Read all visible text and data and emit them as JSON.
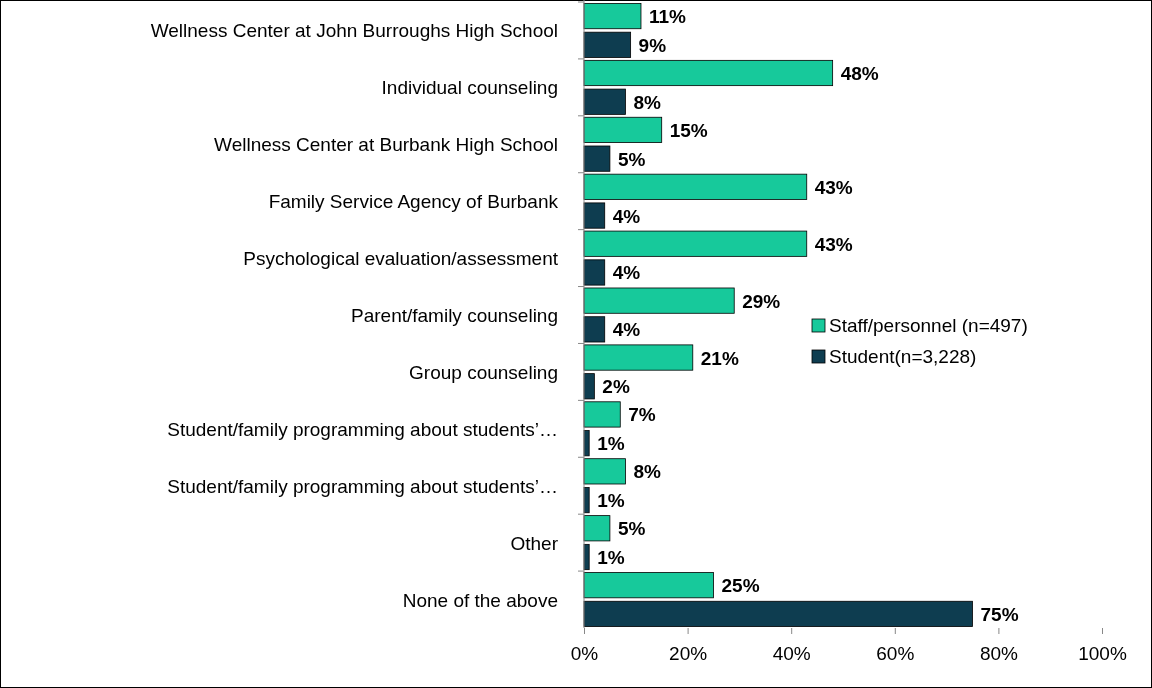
{
  "chart_data": {
    "type": "bar",
    "orientation": "horizontal",
    "categories": [
      "Wellness Center at John Burroughs High School",
      "Individual counseling",
      "Wellness Center at Burbank High School",
      "Family Service Agency of Burbank",
      "Psychological evaluation/assessment",
      "Parent/family counseling",
      "Group counseling",
      "Student/family programming about students’…",
      "Student/family programming about students’…",
      "Other",
      "None of the above"
    ],
    "series": [
      {
        "name": "Staff/personnel (n=497)",
        "color": "#17c99b",
        "values": [
          11,
          48,
          15,
          43,
          43,
          29,
          21,
          7,
          8,
          5,
          25
        ],
        "value_labels": [
          "11%",
          "48%",
          "15%",
          "43%",
          "43%",
          "29%",
          "21%",
          "7%",
          "8%",
          "5%",
          "25%"
        ]
      },
      {
        "name": "Student(n=3,228)",
        "color": "#0e3d50",
        "values": [
          9,
          8,
          5,
          4,
          4,
          4,
          2,
          1,
          1,
          1,
          75
        ],
        "value_labels": [
          "9%",
          "8%",
          "5%",
          "4%",
          "4%",
          "4%",
          "2%",
          "1%",
          "1%",
          "1%",
          "75%"
        ]
      }
    ],
    "xlim": [
      0,
      100
    ],
    "xticks": [
      {
        "value": 0,
        "label": "0%"
      },
      {
        "value": 20,
        "label": "20%"
      },
      {
        "value": 40,
        "label": "40%"
      },
      {
        "value": 60,
        "label": "60%"
      },
      {
        "value": 80,
        "label": "80%"
      },
      {
        "value": 100,
        "label": "100%"
      }
    ],
    "grid": false,
    "legend": "right"
  }
}
